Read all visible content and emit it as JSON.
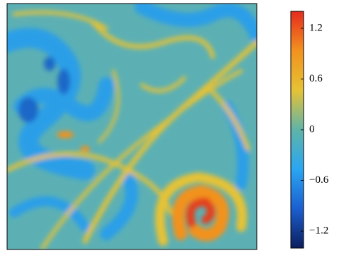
{
  "chart_data": {
    "type": "heatmap",
    "colormap": [
      "#0b1e5e",
      "#1b5fd0",
      "#2aa6f2",
      "#5fb4a8",
      "#e6c235",
      "#f2921f",
      "#e52b1e"
    ],
    "zlim": [
      -1.4,
      1.4
    ],
    "zticks": [
      1.2,
      0.6,
      0,
      {
        "value": -0.6,
        "label": "−0.6"
      },
      {
        "value": -1.2,
        "label": "−1.2"
      }
    ]
  }
}
